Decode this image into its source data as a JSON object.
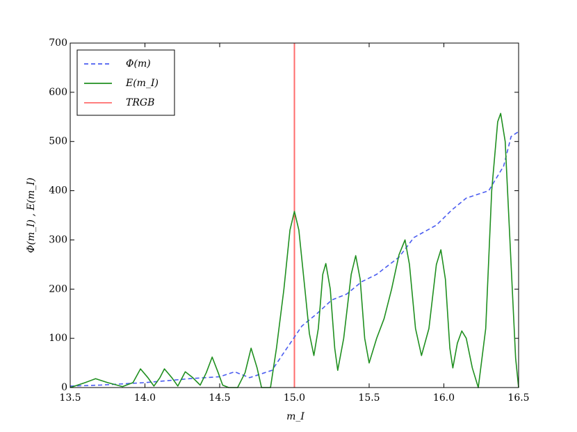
{
  "chart_data": {
    "type": "line",
    "x_label": "m_I",
    "y_label": "Φ(m_I) , E(m_I)",
    "xlim": [
      13.5,
      16.5
    ],
    "ylim": [
      0,
      700
    ],
    "xticks": [
      {
        "value": 13.5,
        "label": "13.5"
      },
      {
        "value": 14,
        "label": "14.0"
      },
      {
        "value": 14.5,
        "label": "14.5"
      },
      {
        "value": 15,
        "label": "15.0"
      },
      {
        "value": 15.5,
        "label": "15.5"
      },
      {
        "value": 16,
        "label": "16.0"
      },
      {
        "value": 16.5,
        "label": "16.5"
      }
    ],
    "yticks": [
      0,
      100,
      200,
      300,
      400,
      500,
      600,
      700
    ],
    "legend": "upper left",
    "series": [
      {
        "name": "Φ(m)",
        "color": "#4a5cf0",
        "dash": true,
        "x": [
          13.5,
          13.7,
          14.0,
          14.3,
          14.5,
          14.6,
          14.7,
          14.85,
          14.95,
          15.05,
          15.15,
          15.25,
          15.35,
          15.45,
          15.55,
          15.7,
          15.8,
          15.95,
          16.05,
          16.15,
          16.25,
          16.3,
          16.4,
          16.45,
          16.5
        ],
        "values": [
          3,
          5,
          10,
          18,
          22,
          32,
          20,
          35,
          80,
          125,
          150,
          178,
          190,
          215,
          230,
          265,
          305,
          330,
          360,
          385,
          395,
          400,
          450,
          510,
          520
        ]
      },
      {
        "name": "E(m_I)",
        "color": "#1f8f1f",
        "dash": false,
        "x": [
          13.5,
          13.6,
          13.67,
          13.75,
          13.85,
          13.92,
          13.97,
          14.02,
          14.06,
          14.1,
          14.13,
          14.18,
          14.22,
          14.27,
          14.32,
          14.37,
          14.41,
          14.45,
          14.49,
          14.52,
          14.56,
          14.62,
          14.67,
          14.71,
          14.75,
          14.78,
          14.84,
          14.88,
          14.93,
          14.97,
          15.0,
          15.03,
          15.07,
          15.1,
          15.13,
          15.16,
          15.19,
          15.21,
          15.24,
          15.27,
          15.29,
          15.33,
          15.38,
          15.41,
          15.44,
          15.47,
          15.5,
          15.55,
          15.6,
          15.65,
          15.7,
          15.74,
          15.77,
          15.81,
          15.85,
          15.9,
          15.95,
          15.98,
          16.01,
          16.04,
          16.06,
          16.09,
          16.12,
          16.15,
          16.19,
          16.23,
          16.28,
          16.32,
          16.36,
          16.38,
          16.41,
          16.45,
          16.48,
          16.5
        ],
        "values": [
          0,
          10,
          18,
          10,
          2,
          10,
          38,
          20,
          3,
          20,
          38,
          20,
          3,
          32,
          20,
          5,
          30,
          62,
          30,
          5,
          0,
          0,
          30,
          80,
          40,
          0,
          0,
          80,
          200,
          320,
          358,
          320,
          200,
          110,
          65,
          120,
          230,
          252,
          200,
          80,
          35,
          100,
          230,
          268,
          220,
          100,
          50,
          100,
          140,
          200,
          270,
          300,
          250,
          120,
          65,
          120,
          250,
          280,
          220,
          80,
          40,
          90,
          115,
          100,
          40,
          0,
          120,
          400,
          540,
          557,
          500,
          250,
          60,
          0
        ]
      }
    ],
    "vline": {
      "name": "TRGB",
      "color": "#ff6b6b",
      "x": 15.0
    }
  }
}
